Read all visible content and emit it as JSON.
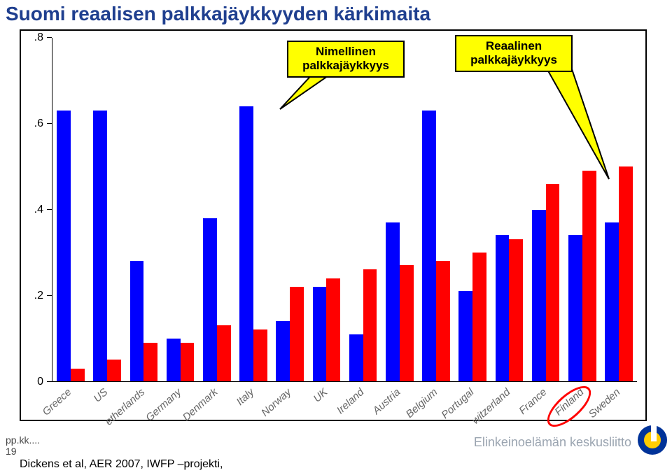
{
  "title": "Suomi reaalisen palkkajäykkyyden kärkimaita",
  "title_color": "#1f3f8f",
  "title_fontsize": 28,
  "chart": {
    "type": "bar",
    "ylim": [
      0,
      0.8
    ],
    "yticks": [
      0,
      0.2,
      0.4,
      0.6,
      0.8
    ],
    "ytick_labels": [
      "0",
      ".2",
      ".4",
      ".6",
      ".8"
    ],
    "background": "#ffffff",
    "border_color": "#000000",
    "categories": [
      "Greece",
      "US",
      "etherlands",
      "Germany",
      "Denmark",
      "Italy",
      "Norway",
      "UK",
      "Ireland",
      "Austria",
      "Belgium",
      "Portugal",
      "witzerland",
      "France",
      "Finland",
      "Sweden"
    ],
    "series": [
      {
        "name": "Nimellinen",
        "color": "#0000ff",
        "values": [
          0.63,
          0.63,
          0.28,
          0.1,
          0.38,
          0.64,
          0.14,
          0.22,
          0.11,
          0.37,
          0.63,
          0.21,
          0.34,
          0.4,
          0.34,
          0.37
        ]
      },
      {
        "name": "Reaalinen",
        "color": "#ff0000",
        "values": [
          0.03,
          0.05,
          0.09,
          0.09,
          0.13,
          0.12,
          0.22,
          0.24,
          0.26,
          0.27,
          0.28,
          0.3,
          0.33,
          0.46,
          0.49,
          0.5
        ]
      }
    ],
    "bar_group_width": 0.76,
    "bar_gap": 0.0,
    "xlabel_rotation": -42,
    "xlabel_fontsize": 15,
    "xlabel_style": "italic",
    "xlabel_color": "#666666",
    "highlight_category": "Finland",
    "highlight_ring_color": "#ff0000"
  },
  "callout1": {
    "line1": "Nimellinen",
    "line2": "palkkajäykkyys"
  },
  "callout2": {
    "line1": "Reaalinen",
    "line2": "palkkajäykkyys"
  },
  "footer": {
    "left": "pp.kk....",
    "slideNumber": "19",
    "source": "Dickens et al,  AER 2007, IWFP –projekti,",
    "org": "Elinkeinoelämän keskusliitto"
  },
  "logo": {
    "outer": "#003399",
    "inner": "#ffcc00",
    "cut": "#ffffff"
  }
}
